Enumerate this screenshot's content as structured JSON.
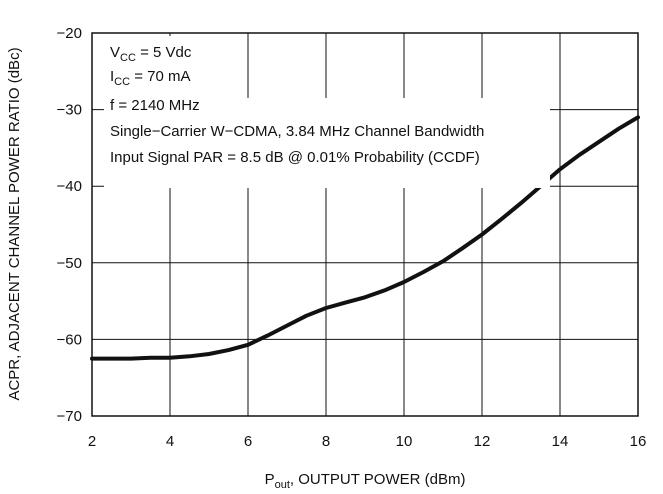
{
  "chart_data": {
    "type": "line",
    "xlabel_main": "P",
    "xlabel_sub": "out",
    "xlabel_rest": ", OUTPUT POWER (dBm)",
    "ylabel": "ACPR, ADJACENT CHANNEL POWER RATIO (dBc)",
    "xlim": [
      2,
      16
    ],
    "ylim": [
      -70,
      -20
    ],
    "xticks": [
      2,
      4,
      6,
      8,
      10,
      12,
      14,
      16
    ],
    "yticks": [
      -70,
      -60,
      -50,
      -40,
      -30,
      -20
    ],
    "xtick_labels": [
      "2",
      "4",
      "6",
      "8",
      "10",
      "12",
      "14",
      "16"
    ],
    "ytick_labels": [
      "−70",
      "−60",
      "−50",
      "−40",
      "−30",
      "−20"
    ],
    "grid": true,
    "annotations": {
      "vcc_main": "V",
      "vcc_sub": "CC",
      "vcc_rest": " = 5 Vdc",
      "icc_main": "I",
      "icc_sub": "CC",
      "icc_rest": " = 70 mA",
      "freq": "f = 2140 MHz",
      "carrier": "Single−Carrier W−CDMA, 3.84 MHz Channel Bandwidth",
      "par": "Input Signal PAR = 8.5 dB @ 0.01% Probability (CCDF)"
    },
    "series": [
      {
        "color": "#111111",
        "x": [
          2,
          2.5,
          3,
          3.5,
          4,
          4.5,
          5,
          5.5,
          6,
          6.5,
          7,
          7.5,
          8,
          8.5,
          9,
          9.5,
          10,
          10.5,
          11,
          11.5,
          12,
          12.5,
          13,
          13.5,
          14,
          14.5,
          15,
          15.5,
          16
        ],
        "y": [
          -62.5,
          -62.5,
          -62.5,
          -62.4,
          -62.4,
          -62.2,
          -61.9,
          -61.4,
          -60.7,
          -59.5,
          -58.2,
          -56.9,
          -55.9,
          -55.2,
          -54.5,
          -53.6,
          -52.5,
          -51.2,
          -49.8,
          -48.1,
          -46.3,
          -44.3,
          -42.2,
          -40.0,
          -37.8,
          -35.9,
          -34.2,
          -32.5,
          -31.0
        ]
      }
    ]
  }
}
